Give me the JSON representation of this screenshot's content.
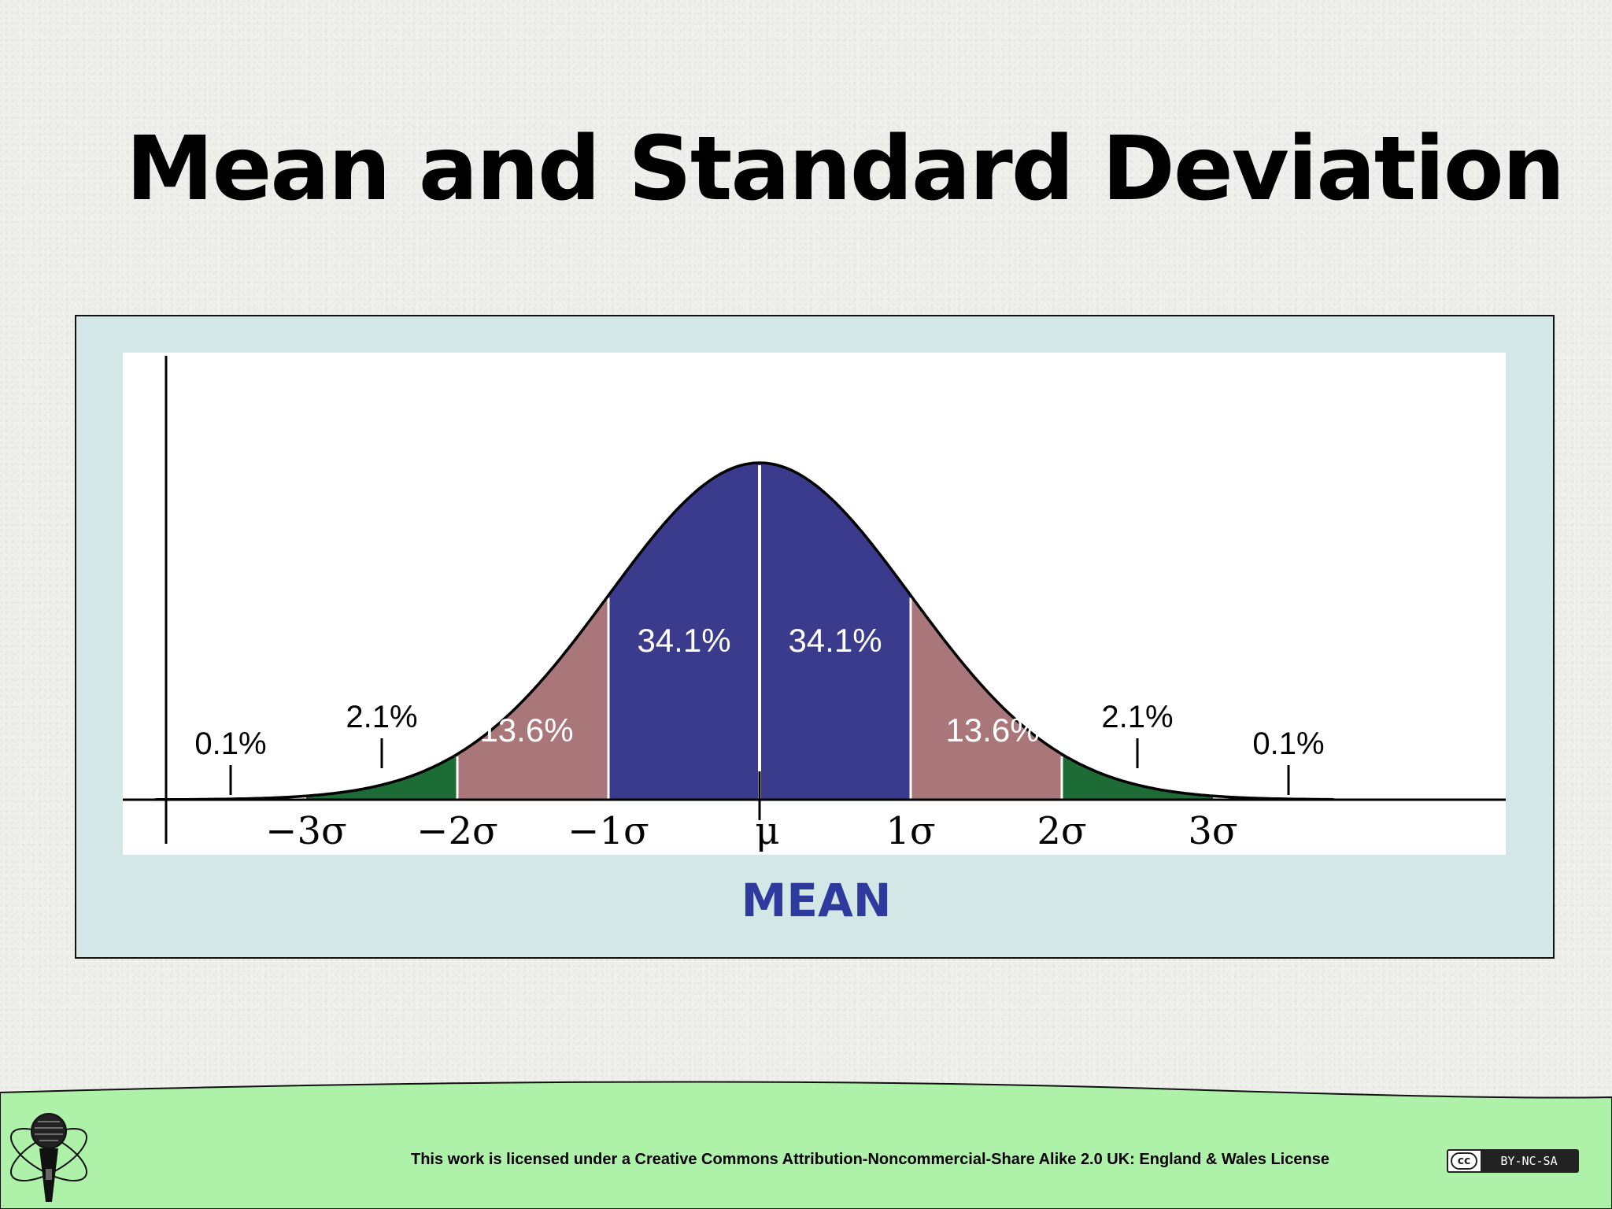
{
  "slide": {
    "title": "Mean and Standard Deviation",
    "mean_caption": "MEAN"
  },
  "footer": {
    "license_text": "This work is licensed under a Creative Commons Attribution-Noncommercial-Share Alike 2.0 UK: England & Wales License",
    "cc_badge": {
      "mark": "cc",
      "label": "BY-NC-SA"
    },
    "logo_icon": "microphone-atom-icon"
  },
  "colors": {
    "blue": "#3b3b8e",
    "rose": "#a9767a",
    "green": "#1d6b35",
    "panel": "#d2e7e6",
    "footer": "#aef1a9",
    "mean_caption": "#2e3a9e"
  },
  "chart_data": {
    "type": "area",
    "distribution": "normal",
    "x_tick_labels": [
      "−3σ",
      "−2σ",
      "−1σ",
      "μ",
      "1σ",
      "2σ",
      "3σ"
    ],
    "regions": [
      {
        "from": -4,
        "to": -3,
        "percent_label": "0.1%",
        "color": "#ffffff"
      },
      {
        "from": -3,
        "to": -2,
        "percent_label": "2.1%",
        "color": "#1d6b35"
      },
      {
        "from": -2,
        "to": -1,
        "percent_label": "13.6%",
        "color": "#a9767a"
      },
      {
        "from": -1,
        "to": 0,
        "percent_label": "34.1%",
        "color": "#3b3b8e"
      },
      {
        "from": 0,
        "to": 1,
        "percent_label": "34.1%",
        "color": "#3b3b8e"
      },
      {
        "from": 1,
        "to": 2,
        "percent_label": "13.6%",
        "color": "#a9767a"
      },
      {
        "from": 2,
        "to": 3,
        "percent_label": "2.1%",
        "color": "#1d6b35"
      },
      {
        "from": 3,
        "to": 4,
        "percent_label": "0.1%",
        "color": "#ffffff"
      }
    ],
    "x_range": [
      -4,
      4
    ],
    "grid": false,
    "legend": "none"
  }
}
